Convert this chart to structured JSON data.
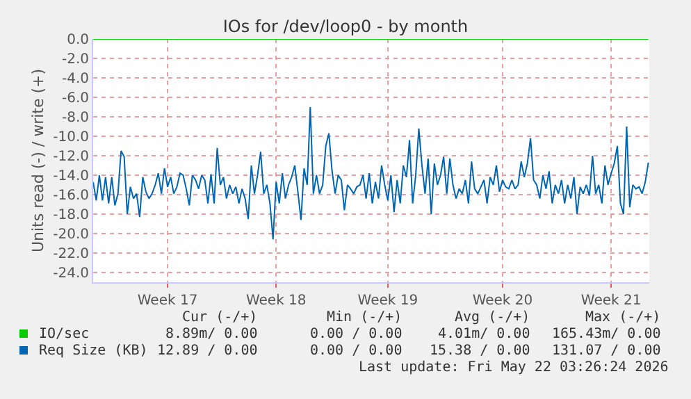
{
  "chart_data": {
    "type": "line",
    "title": "IOs for /dev/loop0 - by month",
    "ylabel": "Units read (-) / write (+)",
    "ylim": [
      -25,
      0
    ],
    "categories": [
      null,
      null,
      null,
      null,
      null,
      null,
      null,
      null,
      null,
      null,
      null,
      null,
      null,
      null,
      null,
      null,
      null,
      null,
      null,
      null,
      null,
      null,
      null,
      null,
      "Week 17",
      null,
      null,
      null,
      null,
      null,
      null,
      null,
      null,
      null,
      null,
      null,
      null,
      null,
      null,
      null,
      null,
      null,
      null,
      null,
      null,
      null,
      null,
      null,
      null,
      null,
      null,
      null,
      null,
      null,
      null,
      null,
      null,
      null,
      null,
      "Week 18",
      null,
      null,
      null,
      null,
      null,
      null,
      null,
      null,
      null,
      null,
      null,
      null,
      null,
      null,
      null,
      null,
      null,
      null,
      null,
      null,
      null,
      null,
      null,
      null,
      null,
      null,
      null,
      null,
      null,
      null,
      null,
      null,
      null,
      null,
      null,
      "Week 19",
      null,
      null,
      null,
      null,
      null,
      null,
      null,
      null,
      null,
      null,
      null,
      null,
      null,
      null,
      null,
      null,
      null,
      null,
      null,
      null,
      null,
      null,
      null,
      null,
      null,
      null,
      null,
      null,
      null,
      null,
      null,
      null,
      null,
      null,
      null,
      null,
      "Week 20",
      null,
      null,
      null,
      null,
      null,
      null,
      null,
      null,
      null,
      null,
      null,
      null,
      null,
      null,
      null,
      null,
      null,
      null,
      null,
      null,
      null,
      null,
      null,
      null,
      null,
      null,
      null,
      null,
      null,
      null,
      null,
      null,
      null,
      null,
      "Week 21",
      null,
      null,
      null,
      null,
      null,
      null,
      null,
      null,
      null,
      null,
      null,
      null
    ],
    "yticks": [
      {
        "value": 0,
        "label": "0.0"
      },
      {
        "value": -2,
        "label": "-2.0"
      },
      {
        "value": -4,
        "label": "-4.0"
      },
      {
        "value": -6,
        "label": "-6.0"
      },
      {
        "value": -8,
        "label": "-8.0"
      },
      {
        "value": -10,
        "label": "-10.0"
      },
      {
        "value": -12,
        "label": "-12.0"
      },
      {
        "value": -14,
        "label": "-14.0"
      },
      {
        "value": -16,
        "label": "-16.0"
      },
      {
        "value": -18,
        "label": "-18.0"
      },
      {
        "value": -20,
        "label": "-20.0"
      },
      {
        "value": -22,
        "label": "-22.0"
      },
      {
        "value": -24,
        "label": "-24.0"
      }
    ],
    "grid": true,
    "legend": "bottom",
    "marker": "none",
    "line_style": "solid",
    "series": [
      {
        "name": "IO/sec",
        "color": "#00cc00",
        "values": [
          0,
          0,
          0,
          0,
          0,
          0,
          0,
          0,
          0,
          0,
          0,
          0,
          0,
          0,
          0,
          0,
          0,
          0,
          0,
          0,
          0,
          0,
          0,
          0,
          0,
          0,
          0,
          0,
          0,
          0,
          0,
          0,
          0,
          0,
          0,
          0,
          0,
          0,
          0,
          0,
          0,
          0,
          0,
          0,
          0,
          0,
          0,
          0,
          0,
          0,
          0,
          0,
          0,
          0,
          0,
          0,
          0,
          0,
          0,
          0,
          0,
          0,
          0,
          0,
          0,
          0,
          0,
          0,
          0,
          0,
          0,
          0,
          0,
          0,
          0,
          0,
          0,
          0,
          0,
          0,
          0,
          0,
          0,
          0,
          0,
          0,
          0,
          0,
          0,
          0,
          0,
          0,
          0,
          0,
          0,
          0,
          0,
          0,
          0,
          0,
          0,
          0,
          0,
          0,
          0,
          0,
          0,
          0,
          0,
          0,
          0,
          0,
          0,
          0,
          0,
          0,
          0,
          0,
          0,
          0,
          0,
          0,
          0,
          0,
          0,
          0,
          0,
          0,
          0,
          0,
          0,
          0,
          0,
          0,
          0,
          0,
          0,
          0,
          0,
          0,
          0,
          0,
          0,
          0,
          0,
          0,
          0,
          0,
          0,
          0,
          0,
          0,
          0,
          0,
          0,
          0,
          0,
          0,
          0,
          0,
          0,
          0,
          0,
          0,
          0,
          0,
          0,
          0,
          0,
          0,
          0,
          0,
          0,
          0,
          0,
          0,
          0,
          0,
          0,
          0
        ]
      },
      {
        "name": "Req Size (KB)",
        "color": "#0066b3",
        "values": [
          -14.7,
          -16.6,
          -14.0,
          -16.6,
          -14.2,
          -16.9,
          -14.2,
          -17.1,
          -15.9,
          -11.5,
          -12.1,
          -18.0,
          -15.2,
          -16.4,
          -15.9,
          -18.3,
          -14.2,
          -15.7,
          -16.4,
          -15.9,
          -15.0,
          -13.8,
          -15.9,
          -13.3,
          -15.2,
          -14.2,
          -15.9,
          -15.2,
          -13.8,
          -14.0,
          -15.4,
          -17.1,
          -14.0,
          -14.5,
          -15.4,
          -14.0,
          -14.5,
          -16.9,
          -13.9,
          -16.9,
          -11.2,
          -15.0,
          -14.2,
          -16.4,
          -15.0,
          -15.9,
          -15.2,
          -16.9,
          -15.4,
          -16.4,
          -18.5,
          -13.0,
          -15.9,
          -14.0,
          -11.6,
          -15.9,
          -15.0,
          -16.9,
          -20.6,
          -14.7,
          -16.9,
          -13.8,
          -16.4,
          -15.0,
          -14.2,
          -13.0,
          -15.7,
          -18.6,
          -13.3,
          -15.0,
          -7.0,
          -15.9,
          -14.0,
          -15.9,
          -15.0,
          -11.0,
          -9.7,
          -13.5,
          -15.9,
          -14.0,
          -14.5,
          -17.6,
          -15.0,
          -15.4,
          -15.9,
          -15.2,
          -15.0,
          -14.0,
          -16.4,
          -13.8,
          -16.9,
          -14.7,
          -16.4,
          -13.0,
          -15.0,
          -16.6,
          -14.0,
          -17.8,
          -14.5,
          -16.9,
          -13.0,
          -14.2,
          -10.4,
          -16.9,
          -14.0,
          -9.2,
          -13.0,
          -15.9,
          -12.3,
          -18.0,
          -12.8,
          -15.0,
          -14.0,
          -12.1,
          -15.9,
          -12.3,
          -15.0,
          -16.4,
          -15.4,
          -15.9,
          -14.5,
          -16.9,
          -12.6,
          -15.4,
          -15.9,
          -15.2,
          -14.5,
          -16.9,
          -14.2,
          -15.0,
          -13.0,
          -15.7,
          -14.5,
          -15.2,
          -15.4,
          -14.5,
          -15.4,
          -15.0,
          -12.6,
          -14.2,
          -12.8,
          -10.2,
          -14.5,
          -15.0,
          -16.4,
          -14.0,
          -15.4,
          -13.6,
          -16.9,
          -15.0,
          -15.9,
          -14.5,
          -16.9,
          -15.0,
          -16.4,
          -14.2,
          -18.0,
          -15.2,
          -15.9,
          -15.0,
          -16.1,
          -12.0,
          -15.9,
          -15.0,
          -16.9,
          -13.0,
          -15.0,
          -13.8,
          -12.8,
          -11.0,
          -16.9,
          -18.0,
          -9.0,
          -17.3,
          -15.0,
          -15.4,
          -15.2,
          -15.9,
          -14.7,
          -12.7
        ]
      }
    ],
    "annotations": [
      "Cur (-/+)",
      "Min (-/+)",
      "Avg (-/+)",
      "Max (-/+)",
      "8.89m/ 0.00",
      "0.00 / 0.00",
      "4.01m/ 0.00",
      "165.43m/ 0.00",
      "12.89 / 0.00",
      "0.00 / 0.00",
      "15.38 / 0.00",
      "131.07 / 0.00",
      "Last update: Fri May 22 03:26:24 2026"
    ]
  }
}
